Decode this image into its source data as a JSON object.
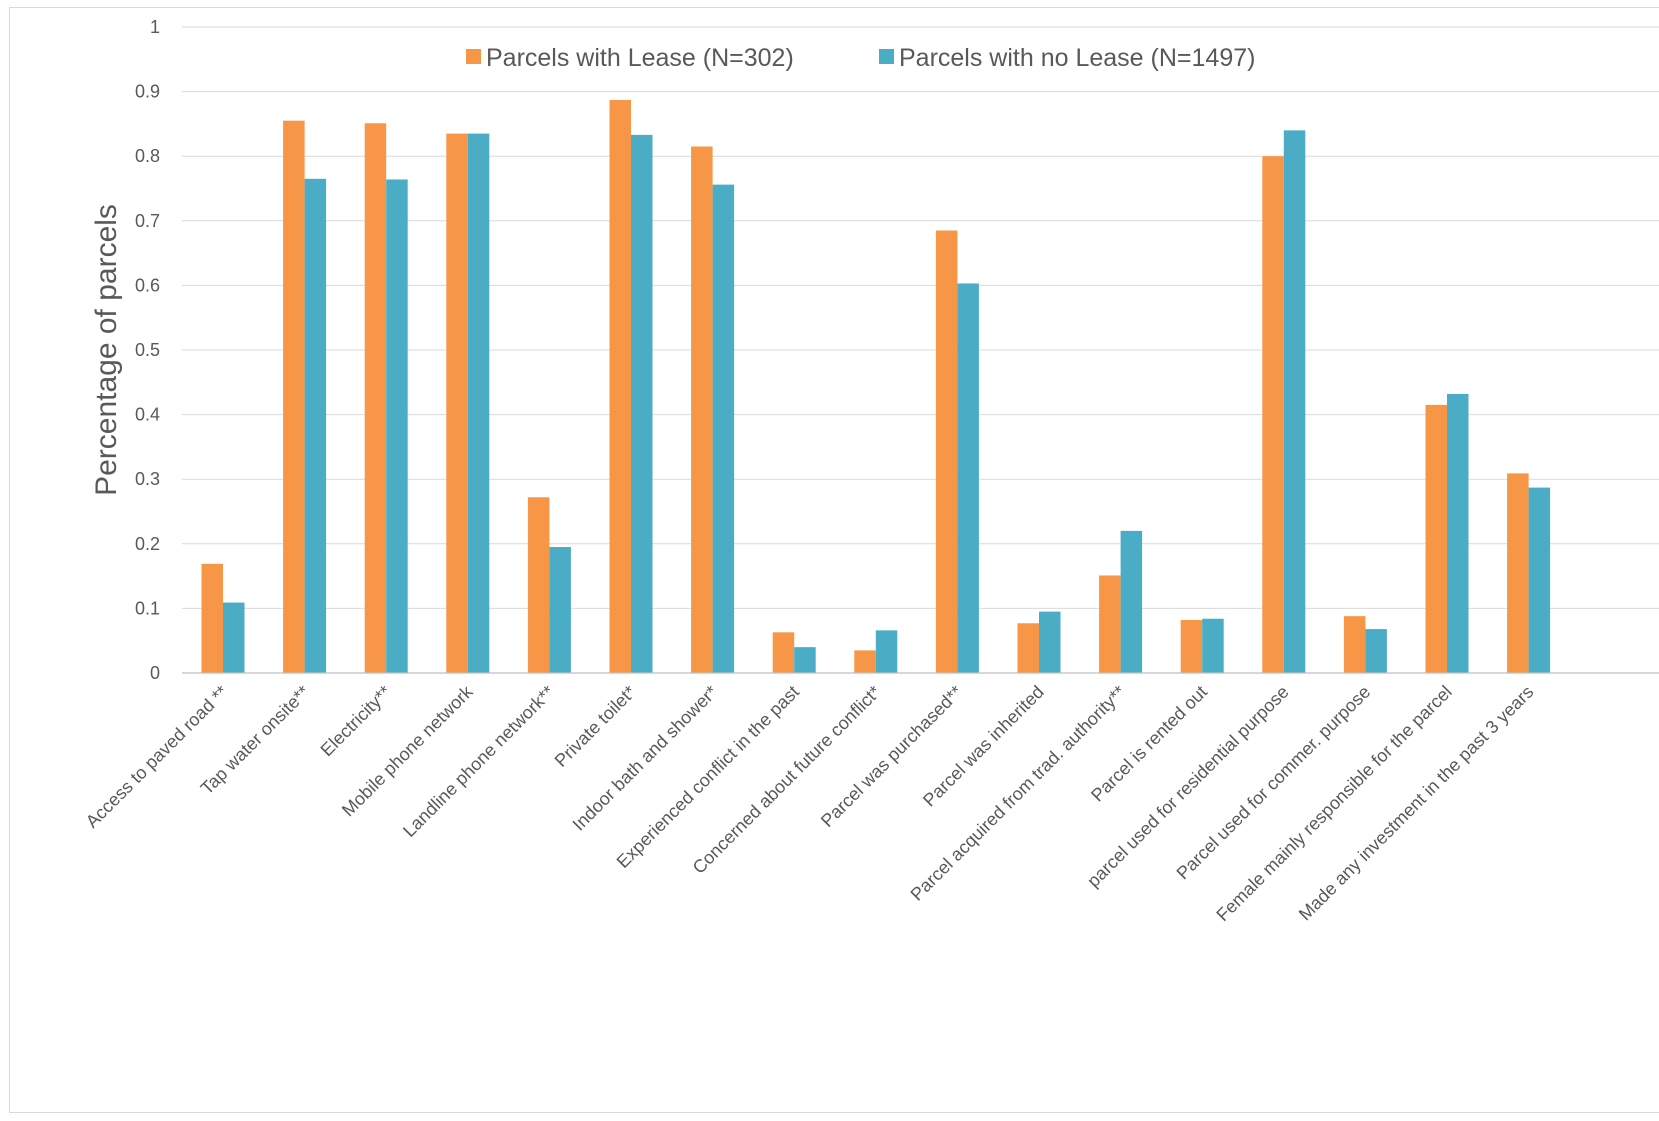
{
  "chart_data": {
    "type": "bar",
    "title": "",
    "xlabel": "",
    "ylabel": "Percentage of parcels",
    "ylim": [
      0,
      1
    ],
    "yticks": [
      "0",
      "0.1",
      "0.2",
      "0.3",
      "0.4",
      "0.5",
      "0.6",
      "0.7",
      "0.8",
      "0.9",
      "1"
    ],
    "grid": true,
    "legend_position": "top",
    "categories": [
      "Access to paved road **",
      "Tap water onsite**",
      "Electricity**",
      "Mobile phone network",
      "Landline phone network**",
      "Private toilet*",
      "Indoor bath and shower*",
      "Experienced conflict in the past",
      "Concerned about future conflict*",
      "Parcel was purchased**",
      "Parcel was inherited",
      "Parcel acquired from trad. authority**",
      "Parcel is rented out",
      "parcel used for residential purpose",
      "Parcel used for commer. purpose",
      "Female mainly responsible for the parcel",
      "Made any investment in the past 3 years"
    ],
    "series": [
      {
        "name": "Parcels with Lease (N=302)",
        "color": "#f79646",
        "values": [
          0.169,
          0.855,
          0.851,
          0.835,
          0.272,
          0.887,
          0.815,
          0.063,
          0.035,
          0.685,
          0.077,
          0.151,
          0.082,
          0.8,
          0.088,
          0.415,
          0.309
        ]
      },
      {
        "name": "Parcels with no Lease (N=1497)",
        "color": "#4bacc6",
        "values": [
          0.109,
          0.765,
          0.764,
          0.835,
          0.195,
          0.833,
          0.756,
          0.04,
          0.066,
          0.603,
          0.095,
          0.22,
          0.084,
          0.84,
          0.068,
          0.432,
          0.287
        ]
      }
    ]
  }
}
